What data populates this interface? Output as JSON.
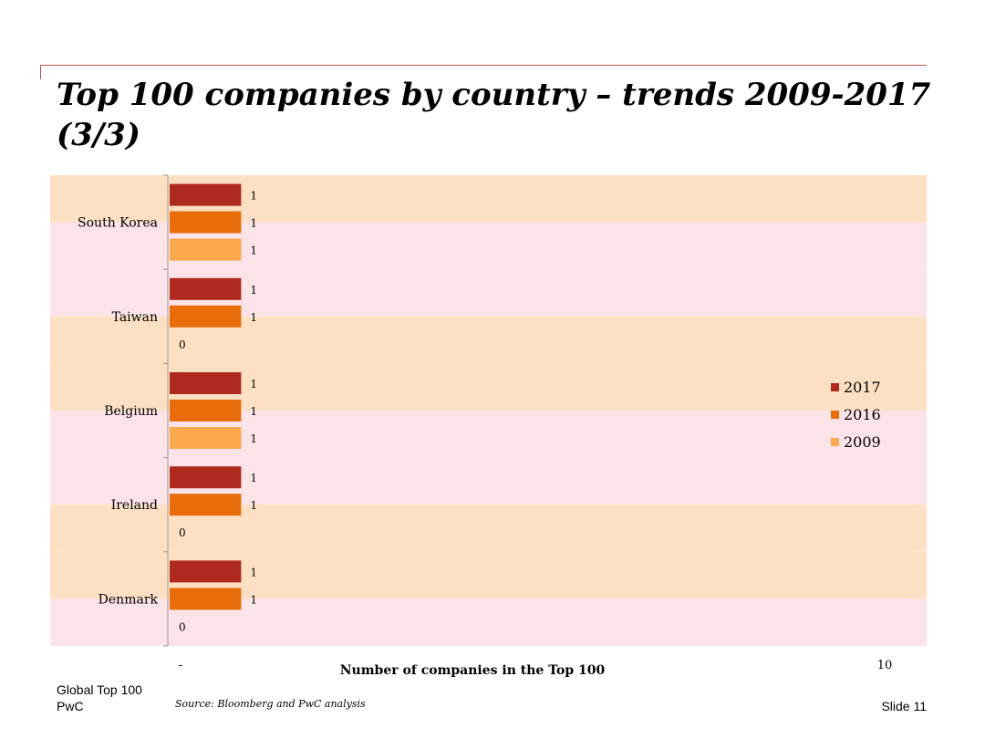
{
  "slide": {
    "title": "Top 100 companies by country – trends 2009-2017 (3/3)",
    "footer_left_line1": "Global Top 100",
    "footer_left_line2": "PwC",
    "source": "Source: Bloomberg and PwC analysis",
    "slide_number": "Slide 11"
  },
  "chart_data": {
    "type": "bar",
    "orientation": "horizontal",
    "categories": [
      "South Korea",
      "Taiwan",
      "Belgium",
      "Ireland",
      "Denmark"
    ],
    "series": [
      {
        "name": "2017",
        "color": "#b0291f",
        "values": [
          1,
          1,
          1,
          1,
          1
        ]
      },
      {
        "name": "2016",
        "color": "#e86c0a",
        "values": [
          1,
          1,
          1,
          1,
          1
        ]
      },
      {
        "name": "2009",
        "color": "#fba84c",
        "values": [
          1,
          0,
          1,
          0,
          0
        ]
      }
    ],
    "xlabel": "Number of companies in the Top 100",
    "xlim": [
      0,
      10
    ],
    "x_tick_labels": [
      "-",
      "10"
    ],
    "legend": "right",
    "band_colors": [
      "#fde0c3",
      "#fbe3e8"
    ]
  }
}
